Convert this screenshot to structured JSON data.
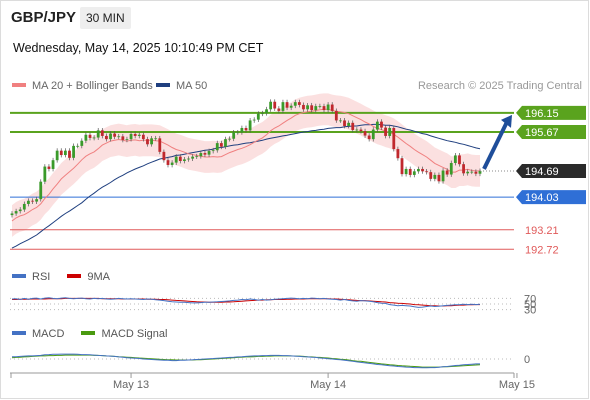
{
  "header": {
    "symbol": "GBP/JPY",
    "interval": "30 MIN",
    "datetime": "Wednesday, May 14, 2025 10:10:49 PM CET"
  },
  "legend": {
    "ma20_label": "MA 20 + Bollinger Bands",
    "ma50_label": "MA 50",
    "ma20_color": "#f08080",
    "ma50_color": "#1f3f7f",
    "credit": "Research © 2025 Trading Central"
  },
  "rsi_legend": {
    "rsi_label": "RSI",
    "ma_label": "9MA",
    "rsi_color": "#4472c4",
    "ma_color": "#cc0000"
  },
  "macd_legend": {
    "macd_label": "MACD",
    "signal_label": "MACD Signal",
    "macd_color": "#4472c4",
    "signal_color": "#4a9a10"
  },
  "chart_data": {
    "type": "candlestick",
    "price_range": [
      192.4,
      196.65
    ],
    "x_ticks": [
      {
        "label": "May 13",
        "index": 29
      },
      {
        "label": "May 14",
        "index": 77
      },
      {
        "label": "May 15",
        "index": 123
      }
    ],
    "last_price": 194.69,
    "levels": [
      {
        "value": 196.15,
        "label": "196.15",
        "kind": "resistance",
        "color": "#5aa31e",
        "tag": true
      },
      {
        "value": 195.67,
        "label": "195.67",
        "kind": "resistance",
        "color": "#5aa31e",
        "tag": true
      },
      {
        "value": 194.03,
        "label": "194.03",
        "kind": "pivot",
        "color": "#2f6fd6",
        "tag": true
      },
      {
        "value": 193.21,
        "label": "193.21",
        "kind": "support",
        "color": "#e05a5a",
        "tag": false
      },
      {
        "value": 192.72,
        "label": "192.72",
        "kind": "support",
        "color": "#e05a5a",
        "tag": false
      }
    ],
    "last_price_tag": {
      "label": "194.69",
      "color": "#2a2a2a"
    },
    "arrow": {
      "from_value": 194.69,
      "to_value": 196.15,
      "color": "#1f4e9a"
    },
    "close": [
      193.62,
      193.68,
      193.72,
      193.86,
      193.94,
      193.92,
      193.98,
      194.42,
      194.8,
      194.74,
      194.96,
      195.2,
      195.09,
      195.2,
      195.02,
      195.32,
      195.32,
      195.45,
      195.6,
      195.52,
      195.53,
      195.71,
      195.57,
      195.49,
      195.63,
      195.55,
      195.56,
      195.47,
      195.49,
      195.62,
      195.57,
      195.6,
      195.49,
      195.36,
      195.51,
      195.51,
      195.17,
      194.96,
      194.84,
      194.9,
      195.05,
      194.94,
      194.98,
      195.0,
      195.05,
      195.06,
      195.14,
      195.1,
      195.19,
      195.21,
      195.39,
      195.3,
      195.49,
      195.5,
      195.66,
      195.66,
      195.77,
      195.71,
      195.96,
      195.98,
      196.13,
      196.14,
      196.24,
      196.43,
      196.26,
      196.2,
      196.42,
      196.28,
      196.33,
      196.42,
      196.35,
      196.24,
      196.34,
      196.22,
      196.32,
      196.32,
      196.22,
      196.36,
      196.2,
      195.96,
      195.96,
      195.82,
      195.9,
      195.72,
      195.73,
      195.69,
      195.58,
      195.49,
      195.73,
      195.93,
      195.78,
      195.57,
      195.77,
      195.24,
      195.01,
      194.61,
      194.74,
      194.59,
      194.68,
      194.74,
      194.68,
      194.66,
      194.49,
      194.59,
      194.43,
      194.7,
      194.6,
      194.89,
      195.08,
      194.86,
      194.63,
      194.67,
      194.67,
      194.62,
      194.69
    ],
    "ma20": [
      193.43,
      193.51,
      193.56,
      193.59,
      193.65,
      193.72,
      193.77,
      193.86,
      194.0,
      194.1,
      194.24,
      194.36,
      194.49,
      194.58,
      194.67,
      194.76,
      194.86,
      194.97,
      195.06,
      195.12,
      195.17,
      195.25,
      195.34,
      195.39,
      195.44,
      195.46,
      195.48,
      195.46,
      195.44,
      195.46,
      195.47,
      195.45,
      195.46,
      195.46,
      195.46,
      195.45,
      195.44,
      195.39,
      195.34,
      195.28,
      195.23,
      195.2,
      195.16,
      195.12,
      195.1,
      195.08,
      195.06,
      195.04,
      195.04,
      195.05,
      195.04,
      195.05,
      195.1,
      195.15,
      195.19,
      195.23,
      195.26,
      195.3,
      195.35,
      195.41,
      195.47,
      195.52,
      195.6,
      195.7,
      195.77,
      195.82,
      195.89,
      195.96,
      196.02,
      196.09,
      196.13,
      196.16,
      196.18,
      196.19,
      196.21,
      196.23,
      196.24,
      196.24,
      196.21,
      196.19,
      196.18,
      196.16,
      196.13,
      196.08,
      196.03,
      195.98,
      195.92,
      195.87,
      195.81,
      195.76,
      195.73,
      195.69,
      195.66,
      195.61,
      195.54,
      195.46,
      195.38,
      195.31,
      195.23,
      195.16,
      195.1,
      195.04,
      194.96,
      194.88,
      194.83,
      194.78,
      194.73,
      194.66,
      194.66,
      194.71,
      194.71,
      194.73,
      194.7,
      194.69,
      194.69
    ],
    "ma50": [
      192.75,
      192.8,
      192.86,
      192.91,
      192.96,
      193.02,
      193.08,
      193.16,
      193.24,
      193.31,
      193.39,
      193.47,
      193.55,
      193.62,
      193.68,
      193.75,
      193.82,
      193.89,
      193.98,
      194.06,
      194.13,
      194.21,
      194.28,
      194.34,
      194.4,
      194.47,
      194.53,
      194.58,
      194.64,
      194.69,
      194.74,
      194.78,
      194.82,
      194.87,
      194.91,
      194.95,
      194.99,
      195.01,
      195.03,
      195.05,
      195.08,
      195.09,
      195.11,
      195.13,
      195.15,
      195.17,
      195.19,
      195.21,
      195.22,
      195.24,
      195.27,
      195.28,
      195.3,
      195.32,
      195.34,
      195.35,
      195.37,
      195.39,
      195.4,
      195.42,
      195.44,
      195.46,
      195.49,
      195.51,
      195.53,
      195.55,
      195.57,
      195.59,
      195.61,
      195.63,
      195.65,
      195.67,
      195.68,
      195.7,
      195.71,
      195.73,
      195.74,
      195.76,
      195.77,
      195.78,
      195.78,
      195.8,
      195.81,
      195.82,
      195.82,
      195.84,
      195.85,
      195.85,
      195.86,
      195.86,
      195.85,
      195.84,
      195.84,
      195.82,
      195.8,
      195.77,
      195.74,
      195.72,
      195.69,
      195.66,
      195.63,
      195.61,
      195.57,
      195.54,
      195.51,
      195.48,
      195.45,
      195.43,
      195.41,
      195.38,
      195.36,
      195.33,
      195.3,
      195.27,
      195.25
    ],
    "bollinger_width": 0.4,
    "rsi": {
      "range": [
        0,
        100
      ],
      "ticks": [
        30,
        50,
        70
      ],
      "rsi": [
        68,
        69,
        66,
        70,
        67,
        70,
        71,
        68,
        71,
        72,
        70,
        69,
        71,
        72,
        70,
        69,
        70,
        71,
        69,
        68,
        70,
        69,
        70,
        68,
        67,
        68,
        70,
        69,
        68,
        69,
        68,
        67,
        66,
        68,
        67,
        65,
        64,
        62,
        60,
        58,
        57,
        56,
        56,
        55,
        54,
        54,
        55,
        56,
        56,
        57,
        58,
        59,
        60,
        61,
        63,
        64,
        66,
        65,
        68,
        66,
        64,
        66,
        64,
        65,
        67,
        68,
        69,
        70,
        71,
        70,
        69,
        70,
        69,
        71,
        70,
        69,
        70,
        68,
        67,
        66,
        64,
        66,
        63,
        61,
        60,
        62,
        61,
        60,
        58,
        55,
        53,
        52,
        48,
        46,
        44,
        45,
        44,
        43,
        40,
        38,
        39,
        41,
        43,
        41,
        42,
        44,
        45,
        46,
        47,
        48,
        49,
        48,
        49,
        48,
        49
      ],
      "ma9": [
        66,
        66,
        67,
        67,
        67,
        68,
        68,
        68,
        68,
        69,
        69,
        69,
        69,
        70,
        70,
        70,
        70,
        70,
        70,
        70,
        70,
        70,
        69,
        69,
        69,
        69,
        69,
        68,
        68,
        68,
        68,
        68,
        68,
        67,
        67,
        67,
        66,
        66,
        65,
        64,
        63,
        62,
        61,
        60,
        59,
        58,
        57,
        57,
        56,
        56,
        56,
        56,
        57,
        57,
        58,
        59,
        60,
        61,
        62,
        63,
        64,
        64,
        65,
        65,
        66,
        66,
        66,
        67,
        67,
        68,
        68,
        68,
        69,
        69,
        69,
        69,
        69,
        69,
        68,
        68,
        67,
        66,
        65,
        64,
        63,
        62,
        62,
        61,
        60,
        59,
        58,
        57,
        55,
        54,
        53,
        52,
        51,
        50,
        48,
        47,
        46,
        45,
        44,
        44,
        43,
        43,
        44,
        44,
        45,
        46,
        46,
        47,
        47,
        48,
        48
      ]
    },
    "macd": {
      "zero_label": "0",
      "macd": [
        0.09,
        0.09,
        0.1,
        0.11,
        0.12,
        0.12,
        0.13,
        0.14,
        0.16,
        0.17,
        0.18,
        0.18,
        0.19,
        0.19,
        0.19,
        0.19,
        0.18,
        0.17,
        0.17,
        0.16,
        0.15,
        0.14,
        0.13,
        0.12,
        0.11,
        0.1,
        0.08,
        0.07,
        0.05,
        0.04,
        0.03,
        0.02,
        0.0,
        -0.01,
        -0.02,
        -0.03,
        -0.04,
        -0.05,
        -0.05,
        -0.06,
        -0.06,
        -0.05,
        -0.05,
        -0.04,
        -0.03,
        -0.02,
        -0.01,
        0.0,
        0.01,
        0.02,
        0.03,
        0.04,
        0.05,
        0.06,
        0.07,
        0.08,
        0.09,
        0.1,
        0.11,
        0.12,
        0.12,
        0.13,
        0.13,
        0.14,
        0.14,
        0.14,
        0.13,
        0.13,
        0.12,
        0.11,
        0.1,
        0.09,
        0.08,
        0.07,
        0.06,
        0.04,
        0.03,
        0.01,
        0.0,
        -0.02,
        -0.03,
        -0.05,
        -0.07,
        -0.09,
        -0.11,
        -0.13,
        -0.15,
        -0.17,
        -0.19,
        -0.21,
        -0.22,
        -0.24,
        -0.26,
        -0.27,
        -0.29,
        -0.3,
        -0.31,
        -0.32,
        -0.33,
        -0.33,
        -0.34,
        -0.34,
        -0.33,
        -0.33,
        -0.32,
        -0.3,
        -0.29,
        -0.27,
        -0.25,
        -0.24,
        -0.22,
        -0.21,
        -0.2,
        -0.19,
        -0.19
      ],
      "signal": [
        0.05,
        0.06,
        0.07,
        0.08,
        0.09,
        0.1,
        0.11,
        0.12,
        0.12,
        0.13,
        0.13,
        0.14,
        0.14,
        0.15,
        0.15,
        0.15,
        0.15,
        0.15,
        0.15,
        0.15,
        0.14,
        0.14,
        0.13,
        0.12,
        0.11,
        0.1,
        0.09,
        0.08,
        0.07,
        0.06,
        0.05,
        0.04,
        0.03,
        0.02,
        0.01,
        0.0,
        -0.01,
        -0.02,
        -0.03,
        -0.03,
        -0.04,
        -0.04,
        -0.04,
        -0.04,
        -0.04,
        -0.03,
        -0.03,
        -0.02,
        -0.01,
        0.0,
        0.01,
        0.02,
        0.03,
        0.04,
        0.05,
        0.06,
        0.07,
        0.08,
        0.08,
        0.09,
        0.1,
        0.1,
        0.11,
        0.11,
        0.12,
        0.12,
        0.12,
        0.12,
        0.12,
        0.11,
        0.11,
        0.1,
        0.09,
        0.08,
        0.07,
        0.06,
        0.05,
        0.04,
        0.02,
        0.01,
        -0.01,
        -0.02,
        -0.04,
        -0.06,
        -0.08,
        -0.09,
        -0.11,
        -0.13,
        -0.15,
        -0.17,
        -0.19,
        -0.2,
        -0.22,
        -0.23,
        -0.25,
        -0.26,
        -0.27,
        -0.28,
        -0.29,
        -0.3,
        -0.31,
        -0.31,
        -0.31,
        -0.31,
        -0.31,
        -0.3,
        -0.3,
        -0.29,
        -0.28,
        -0.27,
        -0.26,
        -0.25,
        -0.24,
        -0.23,
        -0.22
      ]
    }
  }
}
